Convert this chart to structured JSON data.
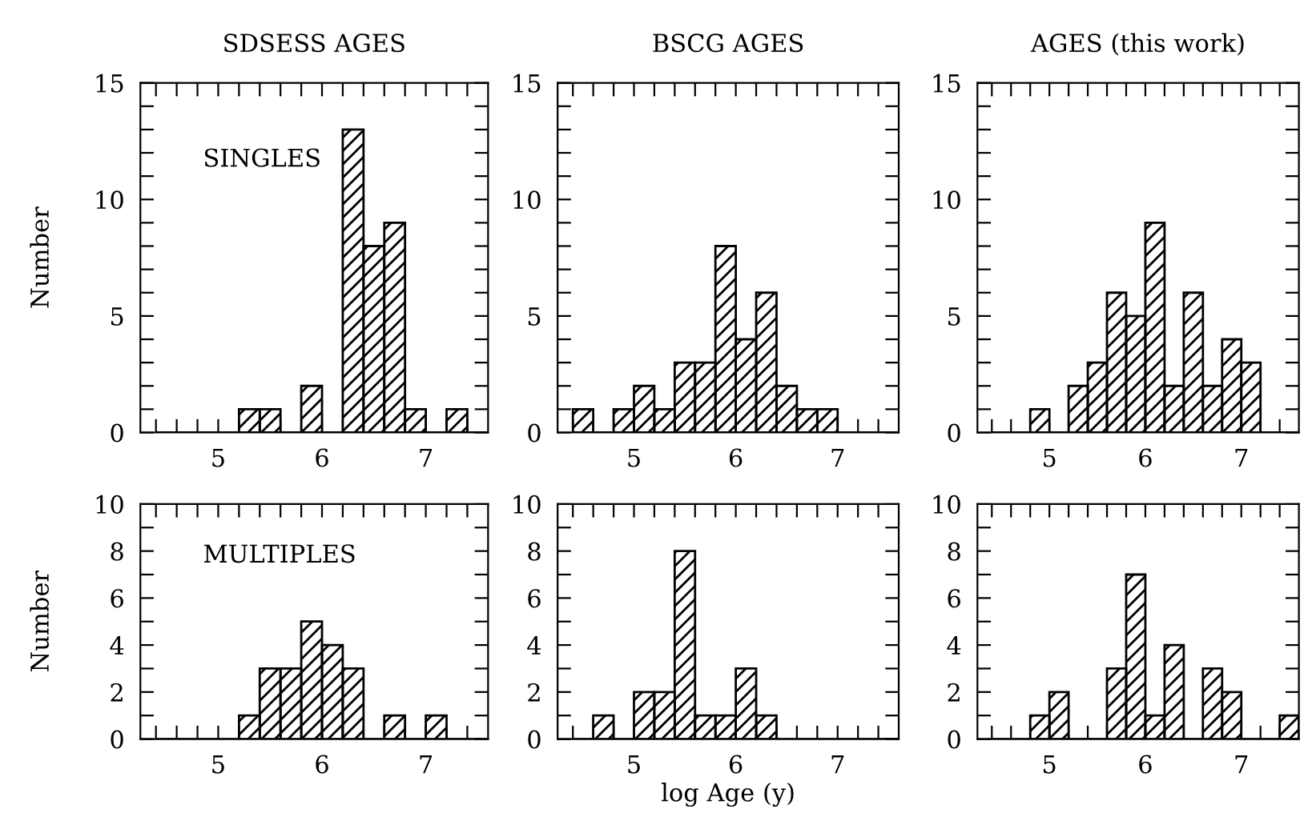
{
  "chart_data": [
    {
      "type": "histogram",
      "title": "SDSESS AGES",
      "ylabel": "Number",
      "annotations": [
        "SINGLES"
      ],
      "color": "#000000",
      "bins": [
        4.4,
        4.6,
        4.8,
        5.0,
        5.2,
        5.4,
        5.6,
        5.8,
        6.0,
        6.2,
        6.4,
        6.6,
        6.8,
        7.0,
        7.2,
        7.4,
        7.6
      ],
      "values": [
        0,
        0,
        0,
        0,
        1,
        1,
        0,
        2,
        0,
        13,
        8,
        9,
        1,
        0,
        1,
        0
      ],
      "xlim": [
        4.25,
        7.6
      ],
      "ylim": [
        0,
        15
      ],
      "xticks": [
        {
          "value": 4.4,
          "label": null
        },
        {
          "value": 4.6,
          "label": null
        },
        {
          "value": 4.8,
          "label": null
        },
        5,
        {
          "value": 5.2,
          "label": null
        },
        {
          "value": 5.4,
          "label": null
        },
        {
          "value": 5.6,
          "label": null
        },
        {
          "value": 5.8,
          "label": null
        },
        6,
        {
          "value": 6.2,
          "label": null
        },
        {
          "value": 6.4,
          "label": null
        },
        {
          "value": 6.6,
          "label": null
        },
        {
          "value": 6.8,
          "label": null
        },
        7,
        {
          "value": 7.2,
          "label": null
        },
        {
          "value": 7.4,
          "label": null
        }
      ],
      "yticks": [
        0,
        {
          "value": 1,
          "label": null
        },
        {
          "value": 2,
          "label": null
        },
        {
          "value": 3,
          "label": null
        },
        {
          "value": 4,
          "label": null
        },
        5,
        {
          "value": 6,
          "label": null
        },
        {
          "value": 7,
          "label": null
        },
        {
          "value": 8,
          "label": null
        },
        {
          "value": 9,
          "label": null
        },
        10,
        {
          "value": 11,
          "label": null
        },
        {
          "value": 12,
          "label": null
        },
        {
          "value": 13,
          "label": null
        },
        {
          "value": 14,
          "label": null
        },
        15
      ]
    },
    {
      "type": "histogram",
      "title": "BSCG AGES",
      "color": "#000000",
      "bins": [
        4.4,
        4.6,
        4.8,
        5.0,
        5.2,
        5.4,
        5.6,
        5.8,
        6.0,
        6.2,
        6.4,
        6.6,
        6.8,
        7.0,
        7.2,
        7.4,
        7.6
      ],
      "values": [
        1,
        0,
        1,
        2,
        1,
        3,
        3,
        8,
        4,
        6,
        2,
        1,
        1,
        0,
        0,
        0
      ],
      "xlim": [
        4.25,
        7.6
      ],
      "ylim": [
        0,
        15
      ],
      "xticks": [
        {
          "value": 4.4,
          "label": null
        },
        {
          "value": 4.6,
          "label": null
        },
        {
          "value": 4.8,
          "label": null
        },
        5,
        {
          "value": 5.2,
          "label": null
        },
        {
          "value": 5.4,
          "label": null
        },
        {
          "value": 5.6,
          "label": null
        },
        {
          "value": 5.8,
          "label": null
        },
        6,
        {
          "value": 6.2,
          "label": null
        },
        {
          "value": 6.4,
          "label": null
        },
        {
          "value": 6.6,
          "label": null
        },
        {
          "value": 6.8,
          "label": null
        },
        7,
        {
          "value": 7.2,
          "label": null
        },
        {
          "value": 7.4,
          "label": null
        }
      ],
      "yticks": [
        0,
        {
          "value": 1,
          "label": null
        },
        {
          "value": 2,
          "label": null
        },
        {
          "value": 3,
          "label": null
        },
        {
          "value": 4,
          "label": null
        },
        5,
        {
          "value": 6,
          "label": null
        },
        {
          "value": 7,
          "label": null
        },
        {
          "value": 8,
          "label": null
        },
        {
          "value": 9,
          "label": null
        },
        10,
        {
          "value": 11,
          "label": null
        },
        {
          "value": 12,
          "label": null
        },
        {
          "value": 13,
          "label": null
        },
        {
          "value": 14,
          "label": null
        },
        15
      ]
    },
    {
      "type": "histogram",
      "title": "AGES (this work)",
      "color": "#000000",
      "bins": [
        4.4,
        4.6,
        4.8,
        5.0,
        5.2,
        5.4,
        5.6,
        5.8,
        6.0,
        6.2,
        6.4,
        6.6,
        6.8,
        7.0,
        7.2,
        7.4,
        7.6
      ],
      "values": [
        0,
        0,
        1,
        0,
        2,
        3,
        6,
        5,
        9,
        2,
        6,
        2,
        4,
        3,
        0,
        0
      ],
      "xlim": [
        4.25,
        7.6
      ],
      "ylim": [
        0,
        15
      ],
      "xticks": [
        {
          "value": 4.4,
          "label": null
        },
        {
          "value": 4.6,
          "label": null
        },
        {
          "value": 4.8,
          "label": null
        },
        5,
        {
          "value": 5.2,
          "label": null
        },
        {
          "value": 5.4,
          "label": null
        },
        {
          "value": 5.6,
          "label": null
        },
        {
          "value": 5.8,
          "label": null
        },
        6,
        {
          "value": 6.2,
          "label": null
        },
        {
          "value": 6.4,
          "label": null
        },
        {
          "value": 6.6,
          "label": null
        },
        {
          "value": 6.8,
          "label": null
        },
        7,
        {
          "value": 7.2,
          "label": null
        },
        {
          "value": 7.4,
          "label": null
        }
      ],
      "yticks": [
        0,
        {
          "value": 1,
          "label": null
        },
        {
          "value": 2,
          "label": null
        },
        {
          "value": 3,
          "label": null
        },
        {
          "value": 4,
          "label": null
        },
        5,
        {
          "value": 6,
          "label": null
        },
        {
          "value": 7,
          "label": null
        },
        {
          "value": 8,
          "label": null
        },
        {
          "value": 9,
          "label": null
        },
        10,
        {
          "value": 11,
          "label": null
        },
        {
          "value": 12,
          "label": null
        },
        {
          "value": 13,
          "label": null
        },
        {
          "value": 14,
          "label": null
        },
        15
      ]
    },
    {
      "type": "histogram",
      "ylabel": "Number",
      "annotations": [
        "MULTIPLES"
      ],
      "color": "#000000",
      "bins": [
        4.4,
        4.6,
        4.8,
        5.0,
        5.2,
        5.4,
        5.6,
        5.8,
        6.0,
        6.2,
        6.4,
        6.6,
        6.8,
        7.0,
        7.2,
        7.4,
        7.6
      ],
      "values": [
        0,
        0,
        0,
        0,
        1,
        3,
        3,
        5,
        4,
        3,
        0,
        1,
        0,
        1,
        0,
        0
      ],
      "xlim": [
        4.25,
        7.6
      ],
      "ylim": [
        0,
        10
      ],
      "xticks": [
        {
          "value": 4.4,
          "label": null
        },
        {
          "value": 4.6,
          "label": null
        },
        {
          "value": 4.8,
          "label": null
        },
        5,
        {
          "value": 5.2,
          "label": null
        },
        {
          "value": 5.4,
          "label": null
        },
        {
          "value": 5.6,
          "label": null
        },
        {
          "value": 5.8,
          "label": null
        },
        6,
        {
          "value": 6.2,
          "label": null
        },
        {
          "value": 6.4,
          "label": null
        },
        {
          "value": 6.6,
          "label": null
        },
        {
          "value": 6.8,
          "label": null
        },
        7,
        {
          "value": 7.2,
          "label": null
        },
        {
          "value": 7.4,
          "label": null
        }
      ],
      "yticks": [
        0,
        {
          "value": 1,
          "label": null
        },
        2,
        {
          "value": 3,
          "label": null
        },
        4,
        {
          "value": 5,
          "label": null
        },
        6,
        {
          "value": 7,
          "label": null
        },
        8,
        {
          "value": 9,
          "label": null
        },
        10
      ]
    },
    {
      "type": "histogram",
      "xlabel": "log Age (y)",
      "color": "#000000",
      "bins": [
        4.4,
        4.6,
        4.8,
        5.0,
        5.2,
        5.4,
        5.6,
        5.8,
        6.0,
        6.2,
        6.4,
        6.6,
        6.8,
        7.0,
        7.2,
        7.4,
        7.6
      ],
      "values": [
        0,
        1,
        0,
        2,
        2,
        8,
        1,
        1,
        3,
        1,
        0,
        0,
        0,
        0,
        0,
        0
      ],
      "xlim": [
        4.25,
        7.6
      ],
      "ylim": [
        0,
        10
      ],
      "xticks": [
        {
          "value": 4.4,
          "label": null
        },
        {
          "value": 4.6,
          "label": null
        },
        {
          "value": 4.8,
          "label": null
        },
        5,
        {
          "value": 5.2,
          "label": null
        },
        {
          "value": 5.4,
          "label": null
        },
        {
          "value": 5.6,
          "label": null
        },
        {
          "value": 5.8,
          "label": null
        },
        6,
        {
          "value": 6.2,
          "label": null
        },
        {
          "value": 6.4,
          "label": null
        },
        {
          "value": 6.6,
          "label": null
        },
        {
          "value": 6.8,
          "label": null
        },
        7,
        {
          "value": 7.2,
          "label": null
        },
        {
          "value": 7.4,
          "label": null
        }
      ],
      "yticks": [
        0,
        {
          "value": 1,
          "label": null
        },
        2,
        {
          "value": 3,
          "label": null
        },
        4,
        {
          "value": 5,
          "label": null
        },
        6,
        {
          "value": 7,
          "label": null
        },
        8,
        {
          "value": 9,
          "label": null
        },
        10
      ]
    },
    {
      "type": "histogram",
      "color": "#000000",
      "bins": [
        4.4,
        4.6,
        4.8,
        5.0,
        5.2,
        5.4,
        5.6,
        5.8,
        6.0,
        6.2,
        6.4,
        6.6,
        6.8,
        7.0,
        7.2,
        7.4,
        7.6
      ],
      "values": [
        0,
        0,
        1,
        2,
        0,
        0,
        3,
        7,
        1,
        4,
        0,
        3,
        2,
        0,
        0,
        1
      ],
      "xlim": [
        4.25,
        7.6
      ],
      "ylim": [
        0,
        10
      ],
      "xticks": [
        {
          "value": 4.4,
          "label": null
        },
        {
          "value": 4.6,
          "label": null
        },
        {
          "value": 4.8,
          "label": null
        },
        5,
        {
          "value": 5.2,
          "label": null
        },
        {
          "value": 5.4,
          "label": null
        },
        {
          "value": 5.6,
          "label": null
        },
        {
          "value": 5.8,
          "label": null
        },
        6,
        {
          "value": 6.2,
          "label": null
        },
        {
          "value": 6.4,
          "label": null
        },
        {
          "value": 6.6,
          "label": null
        },
        {
          "value": 6.8,
          "label": null
        },
        7,
        {
          "value": 7.2,
          "label": null
        },
        {
          "value": 7.4,
          "label": null
        }
      ],
      "yticks": [
        0,
        {
          "value": 1,
          "label": null
        },
        2,
        {
          "value": 3,
          "label": null
        },
        4,
        {
          "value": 5,
          "label": null
        },
        6,
        {
          "value": 7,
          "label": null
        },
        8,
        {
          "value": 9,
          "label": null
        },
        10
      ]
    }
  ]
}
